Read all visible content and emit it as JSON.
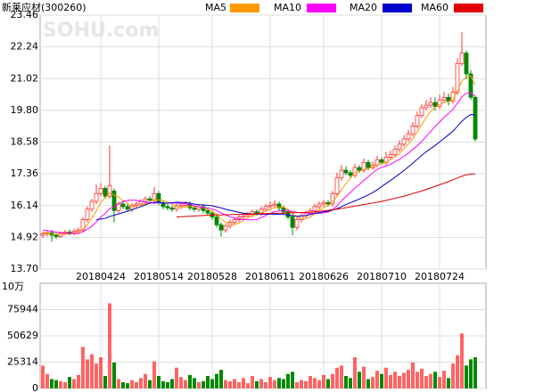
{
  "chart_data": {
    "type": "candlestick",
    "title": "新莱应材(300260)",
    "watermark": "SOHU.com",
    "categories": [
      null,
      null,
      null,
      null,
      null,
      null,
      null,
      null,
      null,
      null,
      null,
      null,
      null,
      "20180424",
      null,
      null,
      null,
      null,
      null,
      null,
      null,
      null,
      null,
      null,
      null,
      null,
      "20180514",
      null,
      null,
      null,
      null,
      null,
      null,
      null,
      null,
      null,
      null,
      null,
      "20180528",
      null,
      null,
      null,
      null,
      null,
      null,
      null,
      null,
      null,
      null,
      null,
      null,
      "20180611",
      null,
      null,
      null,
      null,
      null,
      null,
      null,
      null,
      null,
      null,
      null,
      "20180626",
      null,
      null,
      null,
      null,
      null,
      null,
      null,
      null,
      null,
      null,
      null,
      null,
      "20180710",
      null,
      null,
      null,
      null,
      null,
      null,
      null,
      null,
      null,
      null,
      null,
      null,
      "20180724",
      null,
      null,
      null,
      null,
      null,
      null,
      null,
      null
    ],
    "open": [
      15.0,
      15.05,
      15.1,
      15.0,
      14.95,
      15.08,
      15.12,
      15.1,
      15.15,
      15.2,
      15.6,
      16.0,
      16.3,
      16.6,
      16.8,
      16.5,
      16.7,
      15.95,
      16.2,
      16.1,
      16.0,
      16.15,
      16.2,
      16.3,
      16.4,
      16.35,
      16.6,
      16.25,
      16.1,
      16.05,
      16.0,
      16.1,
      16.15,
      16.2,
      16.05,
      16.0,
      16.1,
      15.95,
      15.85,
      15.7,
      15.4,
      15.2,
      15.35,
      15.5,
      15.6,
      15.7,
      15.75,
      15.8,
      15.9,
      15.85,
      16.0,
      16.1,
      16.15,
      16.2,
      16.05,
      15.9,
      15.7,
      15.3,
      15.6,
      15.75,
      15.85,
      15.95,
      16.1,
      16.2,
      16.25,
      16.2,
      16.6,
      17.2,
      17.5,
      17.4,
      17.3,
      17.6,
      17.5,
      17.8,
      17.6,
      17.7,
      17.9,
      17.8,
      18.0,
      18.1,
      18.3,
      18.5,
      18.7,
      18.9,
      19.2,
      19.6,
      19.9,
      20.0,
      20.1,
      19.95,
      20.2,
      20.3,
      20.15,
      20.5,
      21.6,
      22.0,
      21.2,
      20.3
    ],
    "high": [
      15.15,
      15.2,
      15.2,
      15.1,
      15.15,
      15.2,
      15.22,
      15.25,
      15.3,
      15.7,
      16.1,
      16.4,
      16.95,
      17.0,
      16.9,
      18.45,
      16.8,
      16.3,
      16.3,
      16.2,
      16.25,
      16.3,
      16.4,
      16.5,
      16.5,
      16.85,
      16.7,
      16.35,
      16.2,
      16.15,
      16.2,
      16.25,
      16.3,
      16.3,
      16.15,
      16.2,
      16.2,
      16.05,
      15.95,
      15.8,
      15.5,
      15.45,
      15.6,
      15.7,
      15.8,
      15.85,
      15.9,
      16.0,
      16.0,
      16.1,
      16.2,
      16.3,
      16.35,
      16.3,
      16.15,
      16.0,
      15.8,
      15.7,
      15.85,
      15.95,
      16.05,
      16.2,
      16.3,
      16.35,
      16.35,
      16.7,
      17.4,
      17.7,
      17.65,
      17.5,
      17.75,
      17.7,
      17.95,
      17.9,
      17.85,
      18.05,
      18.0,
      18.2,
      18.25,
      18.45,
      18.65,
      18.85,
      19.05,
      19.35,
      19.75,
      20.05,
      20.2,
      20.3,
      20.3,
      20.4,
      20.5,
      20.45,
      20.7,
      21.8,
      22.8,
      22.1,
      21.35,
      20.35
    ],
    "low": [
      14.9,
      14.95,
      14.75,
      14.85,
      14.9,
      15.0,
      15.0,
      15.0,
      15.05,
      15.1,
      15.5,
      15.9,
      16.2,
      16.5,
      16.4,
      16.4,
      15.5,
      15.85,
      16.0,
      15.9,
      15.9,
      16.05,
      16.1,
      16.2,
      16.25,
      16.25,
      16.15,
      16.0,
      15.95,
      15.9,
      15.9,
      16.0,
      16.05,
      15.95,
      15.9,
      15.9,
      15.85,
      15.75,
      15.6,
      15.3,
      14.95,
      15.1,
      15.25,
      15.4,
      15.5,
      15.6,
      15.65,
      15.7,
      15.75,
      15.75,
      15.9,
      16.0,
      16.05,
      15.95,
      15.8,
      15.6,
      15.0,
      15.2,
      15.5,
      15.65,
      15.75,
      15.85,
      16.0,
      16.1,
      16.1,
      16.1,
      16.5,
      17.1,
      17.3,
      17.2,
      17.2,
      17.4,
      17.4,
      17.5,
      17.5,
      17.6,
      17.7,
      17.7,
      17.9,
      18.0,
      18.2,
      18.4,
      18.6,
      18.8,
      19.1,
      19.5,
      19.8,
      19.9,
      19.8,
      19.85,
      20.1,
      20.0,
      20.05,
      20.4,
      21.5,
      21.0,
      20.2,
      18.6
    ],
    "close": [
      15.05,
      15.1,
      15.0,
      14.95,
      15.08,
      15.12,
      15.1,
      15.15,
      15.2,
      15.6,
      16.0,
      16.3,
      16.6,
      16.8,
      16.5,
      16.9,
      15.95,
      16.2,
      16.1,
      16.0,
      16.15,
      16.2,
      16.3,
      16.4,
      16.35,
      16.6,
      16.25,
      16.1,
      16.05,
      16.0,
      16.1,
      16.15,
      16.2,
      16.05,
      16.0,
      16.1,
      15.95,
      15.85,
      15.7,
      15.4,
      15.2,
      15.35,
      15.5,
      15.6,
      15.7,
      15.75,
      15.8,
      15.9,
      15.85,
      16.0,
      16.1,
      16.15,
      16.2,
      16.05,
      15.9,
      15.7,
      15.3,
      15.6,
      15.75,
      15.85,
      15.95,
      16.1,
      16.2,
      16.25,
      16.2,
      16.6,
      17.2,
      17.5,
      17.4,
      17.3,
      17.6,
      17.5,
      17.8,
      17.6,
      17.7,
      17.9,
      17.8,
      18.0,
      18.1,
      18.3,
      18.5,
      18.7,
      18.9,
      19.2,
      19.6,
      19.9,
      20.0,
      20.1,
      19.95,
      20.2,
      20.3,
      20.15,
      20.5,
      21.6,
      22.0,
      21.2,
      20.3,
      18.7
    ],
    "up_color": "#ff3030",
    "down_color": "#008800",
    "series": [
      {
        "name": "MA5",
        "color": "#ff9900",
        "values": [
          15.1,
          15.08,
          15.05,
          15.03,
          15.04,
          15.05,
          15.05,
          15.08,
          15.13,
          15.23,
          15.41,
          15.65,
          15.94,
          16.26,
          16.44,
          16.62,
          16.55,
          16.47,
          16.33,
          16.23,
          16.08,
          16.13,
          16.15,
          16.21,
          16.28,
          16.37,
          16.36,
          16.34,
          16.27,
          16.2,
          16.1,
          16.08,
          16.1,
          16.1,
          16.1,
          16.1,
          16.06,
          15.99,
          15.92,
          15.8,
          15.62,
          15.5,
          15.43,
          15.41,
          15.47,
          15.58,
          15.67,
          15.75,
          15.8,
          15.86,
          15.93,
          15.99,
          16.06,
          16.07,
          16.08,
          16.0,
          15.83,
          15.71,
          15.65,
          15.64,
          15.69,
          15.85,
          15.97,
          16.07,
          16.14,
          16.27,
          16.49,
          16.75,
          16.98,
          17.2,
          17.4,
          17.46,
          17.52,
          17.56,
          17.64,
          17.7,
          17.76,
          17.8,
          17.9,
          18.02,
          18.14,
          18.32,
          18.5,
          18.72,
          18.98,
          19.26,
          19.52,
          19.76,
          19.91,
          20.03,
          20.11,
          20.14,
          20.22,
          20.55,
          20.91,
          21.09,
          21.12,
          20.76
        ]
      },
      {
        "name": "MA10",
        "color": "#ff00ff",
        "values": [
          15.2,
          15.18,
          15.15,
          15.12,
          15.1,
          15.08,
          15.07,
          15.06,
          15.07,
          15.14,
          15.23,
          15.35,
          15.51,
          15.7,
          15.84,
          16.02,
          16.1,
          16.2,
          16.3,
          16.34,
          16.35,
          16.34,
          16.31,
          16.27,
          16.26,
          16.23,
          16.25,
          16.24,
          16.24,
          16.24,
          16.24,
          16.22,
          16.22,
          16.18,
          16.14,
          16.09,
          16.07,
          16.05,
          16.01,
          15.95,
          15.86,
          15.78,
          15.71,
          15.66,
          15.63,
          15.6,
          15.59,
          15.59,
          15.61,
          15.67,
          15.76,
          15.84,
          15.91,
          15.94,
          15.96,
          15.96,
          15.91,
          15.88,
          15.87,
          15.86,
          15.84,
          15.84,
          15.84,
          15.86,
          15.89,
          15.98,
          16.13,
          16.32,
          16.49,
          16.64,
          16.81,
          16.95,
          17.11,
          17.25,
          17.4,
          17.53,
          17.61,
          17.66,
          17.73,
          17.83,
          17.92,
          18.04,
          18.15,
          18.3,
          18.44,
          18.61,
          18.8,
          18.99,
          19.18,
          19.35,
          19.53,
          19.67,
          19.84,
          20.08,
          20.32,
          20.45,
          20.48,
          20.34
        ]
      },
      {
        "name": "MA20",
        "color": "#0000cc",
        "values": [
          null,
          null,
          null,
          null,
          null,
          null,
          null,
          null,
          null,
          null,
          null,
          null,
          15.6,
          15.62,
          15.65,
          15.72,
          15.77,
          15.82,
          15.87,
          15.92,
          15.98,
          16.04,
          16.1,
          16.17,
          16.23,
          16.27,
          16.27,
          16.24,
          16.23,
          16.25,
          16.27,
          16.26,
          16.26,
          16.23,
          16.2,
          16.17,
          16.16,
          16.15,
          16.13,
          16.09,
          16.05,
          16.0,
          15.96,
          15.92,
          15.88,
          15.85,
          15.83,
          15.82,
          15.81,
          15.81,
          15.81,
          15.81,
          15.81,
          15.8,
          15.8,
          15.78,
          15.75,
          15.73,
          15.74,
          15.76,
          15.8,
          15.84,
          15.87,
          15.9,
          15.92,
          15.97,
          16.02,
          16.1,
          16.18,
          16.25,
          16.32,
          16.39,
          16.47,
          16.55,
          16.64,
          16.75,
          16.87,
          16.99,
          17.11,
          17.23,
          17.36,
          17.49,
          17.63,
          17.77,
          17.92,
          18.07,
          18.21,
          18.33,
          18.45,
          18.59,
          18.72,
          18.86,
          19.0,
          19.19,
          19.38,
          19.53,
          19.64,
          19.63
        ]
      },
      {
        "name": "MA60",
        "color": "#e00000",
        "values": [
          null,
          null,
          null,
          null,
          null,
          null,
          null,
          null,
          null,
          null,
          null,
          null,
          null,
          null,
          null,
          null,
          null,
          null,
          null,
          null,
          null,
          null,
          null,
          null,
          null,
          null,
          null,
          null,
          null,
          null,
          15.7,
          15.71,
          15.72,
          15.73,
          15.74,
          15.75,
          15.76,
          15.77,
          15.77,
          15.78,
          15.78,
          15.79,
          15.79,
          15.8,
          15.8,
          15.81,
          15.81,
          15.82,
          15.82,
          15.83,
          15.83,
          15.84,
          15.84,
          15.85,
          15.85,
          15.86,
          15.86,
          15.87,
          15.87,
          15.88,
          15.89,
          15.9,
          15.92,
          15.94,
          15.96,
          15.98,
          16.0,
          16.03,
          16.06,
          16.09,
          16.12,
          16.15,
          16.18,
          16.21,
          16.24,
          16.27,
          16.3,
          16.34,
          16.38,
          16.42,
          16.46,
          16.5,
          16.55,
          16.6,
          16.65,
          16.7,
          16.76,
          16.82,
          16.88,
          16.94,
          17.0,
          17.06,
          17.13,
          17.2,
          17.27,
          17.32,
          17.35,
          17.36
        ]
      }
    ],
    "ylim": [
      13.7,
      23.46
    ],
    "yticks": [
      {
        "value": 13.7,
        "label": "13.70"
      },
      14.92,
      16.14,
      17.36,
      18.58,
      {
        "value": 19.8,
        "label": "19.80"
      },
      21.02,
      22.24,
      23.46
    ],
    "grid": true,
    "volume": {
      "unit_label": "10万",
      "ylim": [
        0,
        101258
      ],
      "yticks": [
        0,
        25314,
        50629,
        75944
      ],
      "values": [
        22000,
        14000,
        9000,
        8000,
        7000,
        6000,
        11000,
        9000,
        13000,
        40000,
        28000,
        33000,
        24000,
        30000,
        12000,
        82000,
        25000,
        9000,
        6000,
        5000,
        8000,
        6000,
        10000,
        14000,
        8000,
        26000,
        12000,
        7000,
        6000,
        9000,
        20000,
        11000,
        8000,
        13000,
        10000,
        6000,
        7000,
        12000,
        9000,
        14000,
        18000,
        8000,
        7000,
        9000,
        6000,
        10000,
        5000,
        12000,
        7000,
        9000,
        6000,
        11000,
        8000,
        10000,
        9000,
        14000,
        16000,
        6000,
        8000,
        7000,
        12000,
        10000,
        8000,
        13000,
        9000,
        14000,
        20000,
        22000,
        12000,
        10000,
        30000,
        16000,
        21000,
        9000,
        11000,
        17000,
        14000,
        20000,
        13000,
        16000,
        12000,
        15000,
        18000,
        25000,
        16000,
        19000,
        12000,
        14000,
        16000,
        11000,
        17000,
        10000,
        24000,
        32000,
        53000,
        22000,
        28000,
        30000
      ]
    }
  }
}
